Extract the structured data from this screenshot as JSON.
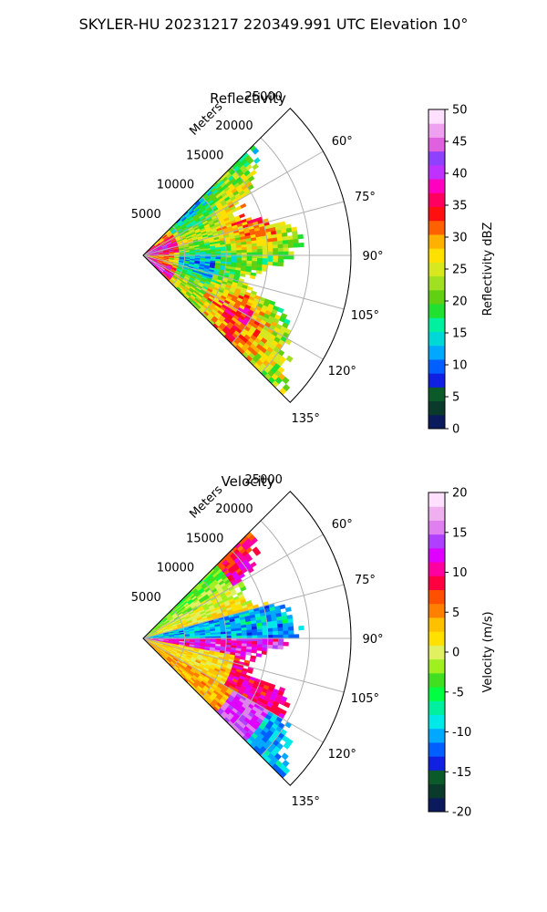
{
  "figure": {
    "suptitle": "SKYLER-HU  20231217  220349.991 UTC Elevation 10°"
  },
  "chart_data": [
    {
      "type": "heatmap",
      "subtype": "polar-sector (radar PPI)",
      "title": "Reflectivity",
      "radial_label": "Meters",
      "r_ticks": [
        5000,
        10000,
        15000,
        20000,
        25000
      ],
      "r_max": 25000,
      "theta_ticks": [
        "60°",
        "75°",
        "90°",
        "105°",
        "120°",
        "135°"
      ],
      "theta_range_deg": [
        45,
        135
      ],
      "grid": true,
      "colorbar": {
        "label": "Reflectivity dBZ",
        "range": [
          0,
          50
        ],
        "ticks": [
          0,
          5,
          10,
          15,
          20,
          25,
          30,
          35,
          40,
          45,
          50
        ]
      },
      "field_summary": {
        "data_range_m": [
          0,
          20000
        ],
        "dominant_values_dBZ": [
          20,
          30
        ],
        "max_values_near_radar_dBZ": 38
      }
    },
    {
      "type": "heatmap",
      "subtype": "polar-sector (radar PPI)",
      "title": "Velocity",
      "radial_label": "Meters",
      "r_ticks": [
        5000,
        10000,
        15000,
        20000,
        25000
      ],
      "r_max": 25000,
      "theta_ticks": [
        "60°",
        "75°",
        "90°",
        "105°",
        "120°",
        "135°"
      ],
      "theta_range_deg": [
        45,
        135
      ],
      "grid": true,
      "colorbar": {
        "label": "Velocity (m/s)",
        "range": [
          -20,
          20
        ],
        "ticks": [
          -20,
          -15,
          -10,
          -5,
          0,
          5,
          10,
          15,
          20
        ]
      },
      "field_summary": {
        "data_range_m": [
          0,
          20000
        ],
        "north_sector_values_ms": [
          -8,
          8
        ],
        "east_band_values_ms": [
          -12,
          -8
        ],
        "south_sector_values_ms": [
          0,
          15
        ]
      }
    }
  ],
  "colors": {
    "reflectivity_cmap": [
      "#0b1a5c",
      "#0a3a2c",
      "#0a5a2a",
      "#1020e0",
      "#0060ff",
      "#00a8ff",
      "#00d8d8",
      "#00f0a0",
      "#20e030",
      "#60d010",
      "#a0e020",
      "#d8e820",
      "#ffe000",
      "#ffb000",
      "#ff6000",
      "#ff1010",
      "#ff0060",
      "#ff00c0",
      "#c030ff",
      "#9040ff",
      "#e060e0",
      "#f0a0f0",
      "#ffe0ff"
    ],
    "velocity_cmap": [
      "#0b1a5c",
      "#0a3a2c",
      "#0a5a2a",
      "#1020e0",
      "#0060ff",
      "#00a8ff",
      "#00e8e8",
      "#00f0a0",
      "#00ff40",
      "#40e020",
      "#a0f020",
      "#e0f060",
      "#ffe000",
      "#ffc000",
      "#ff8000",
      "#ff5000",
      "#ff0040",
      "#ff00a0",
      "#e000ff",
      "#b040ff",
      "#e080f0",
      "#f0b0f0",
      "#ffe0ff"
    ]
  }
}
